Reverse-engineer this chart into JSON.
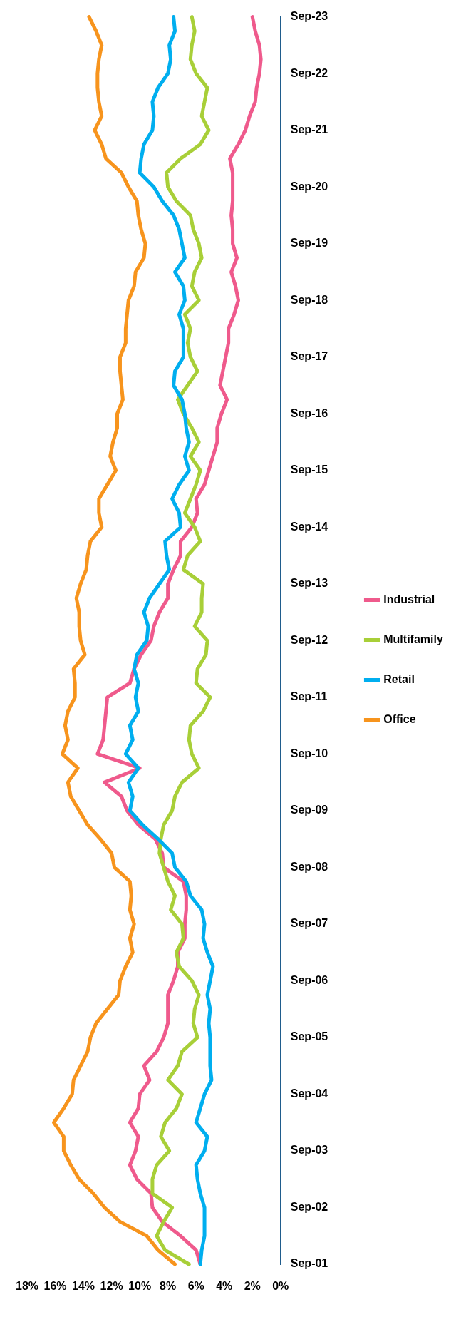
{
  "chart_data": {
    "type": "line",
    "orientation": "horizontal",
    "categories": [
      "Sep-23",
      null,
      null,
      null,
      "Sep-22",
      null,
      null,
      null,
      "Sep-21",
      null,
      null,
      null,
      "Sep-20",
      null,
      null,
      null,
      "Sep-19",
      null,
      null,
      null,
      "Sep-18",
      null,
      null,
      null,
      "Sep-17",
      null,
      null,
      null,
      "Sep-16",
      null,
      null,
      null,
      "Sep-15",
      null,
      null,
      null,
      "Sep-14",
      null,
      null,
      null,
      "Sep-13",
      null,
      null,
      null,
      "Sep-12",
      null,
      null,
      null,
      "Sep-11",
      null,
      null,
      null,
      "Sep-10",
      null,
      null,
      null,
      "Sep-09",
      null,
      null,
      null,
      "Sep-08",
      null,
      null,
      null,
      "Sep-07",
      null,
      null,
      null,
      "Sep-06",
      null,
      null,
      null,
      "Sep-05",
      null,
      null,
      null,
      "Sep-04",
      null,
      null,
      null,
      "Sep-03",
      null,
      null,
      null,
      "Sep-02",
      null,
      null,
      null,
      "Sep-01"
    ],
    "series": [
      {
        "name": "Office",
        "color": "#f7941d",
        "values": [
          13.6,
          13.1,
          12.7,
          12.9,
          13.0,
          13.0,
          12.9,
          12.7,
          13.2,
          12.7,
          12.4,
          11.3,
          10.8,
          10.2,
          10.1,
          9.9,
          9.6,
          9.7,
          10.3,
          10.4,
          10.8,
          10.9,
          11.0,
          11.0,
          11.4,
          11.4,
          11.3,
          11.2,
          11.6,
          11.6,
          11.9,
          12.1,
          11.7,
          12.3,
          12.9,
          12.9,
          12.7,
          13.5,
          13.7,
          13.8,
          14.2,
          14.5,
          14.3,
          14.3,
          14.2,
          13.9,
          14.7,
          14.6,
          14.6,
          15.1,
          15.3,
          15.1,
          15.5,
          14.4,
          15.1,
          14.9,
          14.3,
          13.7,
          12.8,
          12.0,
          11.8,
          10.7,
          10.6,
          10.7,
          10.4,
          10.7,
          10.5,
          11.0,
          11.4,
          11.5,
          12.3,
          13.1,
          13.5,
          13.7,
          14.2,
          14.7,
          14.8,
          15.4,
          16.1,
          15.4,
          15.4,
          14.9,
          14.3,
          13.3,
          12.5,
          11.4,
          9.5,
          8.7,
          7.5
        ]
      },
      {
        "name": "Retail",
        "color": "#00aeef",
        "values": [
          7.6,
          7.5,
          7.9,
          7.8,
          8.0,
          8.7,
          9.1,
          9.0,
          9.1,
          9.7,
          9.9,
          10.0,
          9.0,
          8.4,
          7.6,
          7.2,
          7.0,
          6.8,
          7.5,
          6.9,
          6.8,
          7.2,
          6.9,
          6.9,
          6.9,
          7.5,
          7.6,
          7.0,
          6.8,
          6.7,
          6.5,
          6.8,
          6.5,
          7.2,
          7.7,
          7.2,
          7.1,
          8.2,
          8.1,
          7.9,
          8.6,
          9.3,
          9.7,
          9.4,
          9.5,
          10.2,
          10.4,
          10.1,
          10.3,
          10.1,
          10.7,
          10.5,
          11.0,
          10.1,
          10.8,
          10.5,
          10.7,
          9.8,
          8.7,
          7.7,
          7.5,
          6.7,
          6.4,
          5.6,
          5.4,
          5.5,
          5.2,
          4.8,
          5.0,
          5.2,
          5.0,
          5.1,
          5.0,
          5.0,
          5.0,
          4.9,
          5.4,
          5.7,
          6.0,
          5.2,
          5.4,
          6.0,
          5.9,
          5.7,
          5.4,
          5.4,
          5.4,
          5.6,
          5.7
        ]
      },
      {
        "name": "Multifamily",
        "color": "#a8cf38",
        "values": [
          6.3,
          6.1,
          6.3,
          6.4,
          6.0,
          5.2,
          5.4,
          5.6,
          5.1,
          5.7,
          7.1,
          8.1,
          8.0,
          7.4,
          6.4,
          6.2,
          5.8,
          5.6,
          6.1,
          6.3,
          5.8,
          6.8,
          6.4,
          6.6,
          6.4,
          5.9,
          6.6,
          7.3,
          6.9,
          6.3,
          5.8,
          6.4,
          5.7,
          6.0,
          6.4,
          6.8,
          6.1,
          5.7,
          6.6,
          6.9,
          5.5,
          5.6,
          5.6,
          6.1,
          5.2,
          5.3,
          5.9,
          6.0,
          5.0,
          5.5,
          6.4,
          6.5,
          6.3,
          5.8,
          7.0,
          7.5,
          7.7,
          8.3,
          8.5,
          8.6,
          8.3,
          8.0,
          7.5,
          7.8,
          7.0,
          6.9,
          7.4,
          7.2,
          6.3,
          5.8,
          6.1,
          6.2,
          5.9,
          7.0,
          7.3,
          8.0,
          7.0,
          7.4,
          8.2,
          8.5,
          7.9,
          8.8,
          9.1,
          9.1,
          7.7,
          8.3,
          8.8,
          8.2,
          6.5
        ]
      },
      {
        "name": "Industrial",
        "color": "#ef5a8c",
        "values": [
          2.0,
          1.8,
          1.5,
          1.4,
          1.5,
          1.7,
          1.8,
          2.2,
          2.5,
          3.0,
          3.6,
          3.4,
          3.4,
          3.4,
          3.5,
          3.4,
          3.4,
          3.1,
          3.5,
          3.2,
          3.0,
          3.3,
          3.7,
          3.7,
          3.9,
          4.1,
          4.3,
          3.8,
          4.2,
          4.5,
          4.5,
          4.8,
          5.1,
          5.4,
          6.0,
          5.9,
          6.3,
          7.1,
          7.1,
          7.6,
          8.0,
          8.0,
          8.6,
          9.0,
          9.2,
          9.9,
          10.4,
          10.7,
          12.3,
          12.4,
          12.5,
          12.6,
          13.0,
          10.0,
          12.5,
          11.3,
          10.9,
          10.1,
          8.9,
          8.4,
          8.3,
          6.9,
          6.7,
          6.7,
          6.8,
          6.8,
          7.3,
          7.3,
          7.6,
          8.0,
          8.0,
          8.0,
          8.3,
          8.8,
          9.7,
          9.3,
          10.0,
          10.1,
          10.7,
          10.1,
          10.3,
          10.7,
          10.2,
          9.2,
          9.1,
          8.4,
          7.1,
          6.0,
          5.7
        ]
      }
    ],
    "xlim": [
      18,
      0
    ],
    "xticks": [
      {
        "value": 18,
        "label": "18%"
      },
      {
        "value": 16,
        "label": "16%"
      },
      {
        "value": 14,
        "label": "14%"
      },
      {
        "value": 12,
        "label": "12%"
      },
      {
        "value": 10,
        "label": "10%"
      },
      {
        "value": 8,
        "label": "8%"
      },
      {
        "value": 6,
        "label": "6%"
      },
      {
        "value": 4,
        "label": "4%"
      },
      {
        "value": 2,
        "label": "2%"
      },
      {
        "value": 0,
        "label": "0%"
      }
    ],
    "grid": false,
    "legend": "right",
    "marker": "none",
    "line_style": "solid"
  }
}
